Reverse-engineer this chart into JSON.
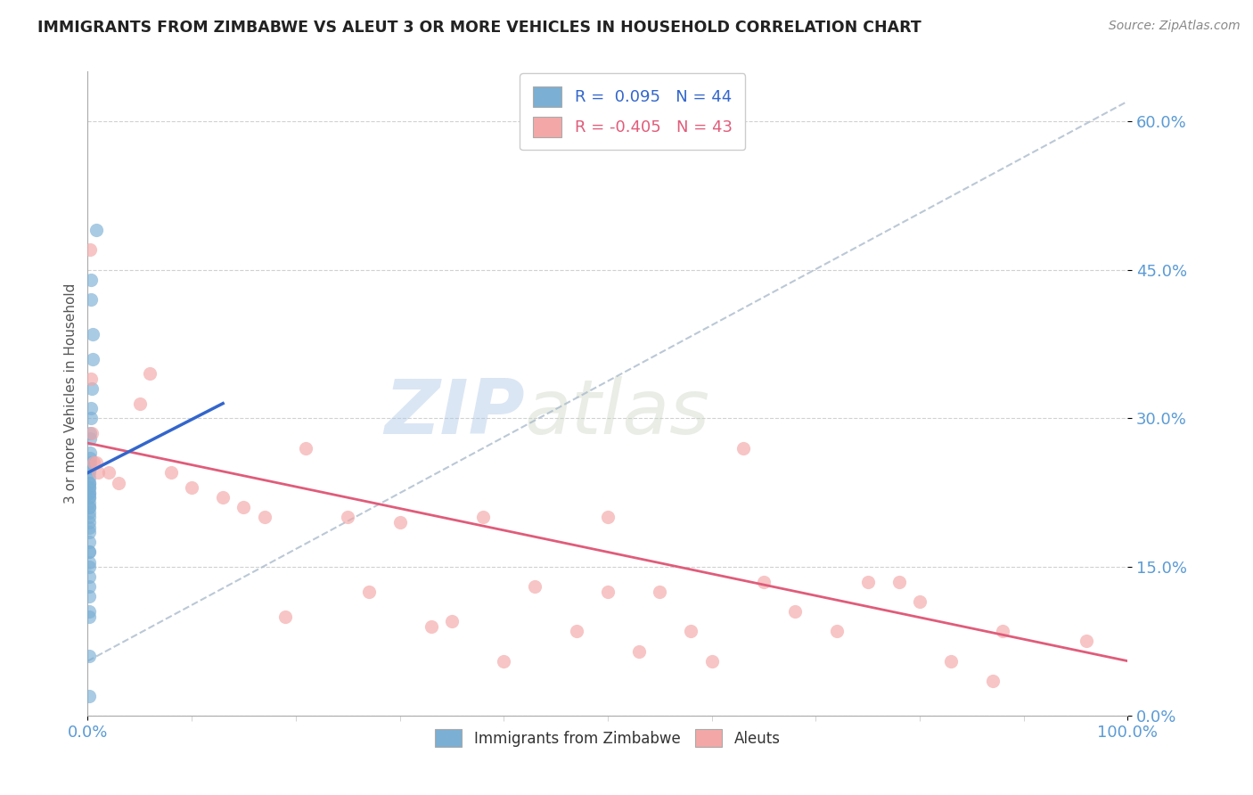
{
  "title": "IMMIGRANTS FROM ZIMBABWE VS ALEUT 3 OR MORE VEHICLES IN HOUSEHOLD CORRELATION CHART",
  "source": "Source: ZipAtlas.com",
  "ylabel": "3 or more Vehicles in Household",
  "watermark_zip": "ZIP",
  "watermark_atlas": "atlas",
  "legend_blue_r": "R =  0.095",
  "legend_blue_n": "N = 44",
  "legend_pink_r": "R = -0.405",
  "legend_pink_n": "N = 43",
  "legend_label_blue": "Immigrants from Zimbabwe",
  "legend_label_pink": "Aleuts",
  "xmin": 0.0,
  "xmax": 1.0,
  "ymin": 0.0,
  "ymax": 0.65,
  "yticks": [
    0.0,
    0.15,
    0.3,
    0.45,
    0.6
  ],
  "ytick_labels": [
    "0.0%",
    "15.0%",
    "30.0%",
    "45.0%",
    "60.0%"
  ],
  "xtick_labels": [
    "0.0%",
    "100.0%"
  ],
  "blue_color": "#7bafd4",
  "pink_color": "#f4a7a7",
  "blue_line_color": "#3366cc",
  "pink_line_color": "#e05c7a",
  "title_color": "#222222",
  "axis_color": "#5b9bd5",
  "grid_color": "#cccccc",
  "background_color": "#ffffff",
  "blue_scatter_x": [
    0.008,
    0.003,
    0.003,
    0.005,
    0.005,
    0.004,
    0.003,
    0.003,
    0.002,
    0.002,
    0.002,
    0.002,
    0.002,
    0.002,
    0.001,
    0.001,
    0.001,
    0.001,
    0.001,
    0.001,
    0.001,
    0.001,
    0.001,
    0.001,
    0.001,
    0.001,
    0.001,
    0.001,
    0.001,
    0.001,
    0.001,
    0.001,
    0.001,
    0.001,
    0.001,
    0.001,
    0.001,
    0.001,
    0.001,
    0.001,
    0.001,
    0.001,
    0.001,
    0.001
  ],
  "blue_scatter_y": [
    0.49,
    0.44,
    0.42,
    0.385,
    0.36,
    0.33,
    0.31,
    0.3,
    0.285,
    0.28,
    0.265,
    0.26,
    0.255,
    0.25,
    0.245,
    0.24,
    0.235,
    0.235,
    0.23,
    0.23,
    0.225,
    0.225,
    0.22,
    0.22,
    0.215,
    0.21,
    0.21,
    0.205,
    0.2,
    0.195,
    0.19,
    0.185,
    0.175,
    0.165,
    0.165,
    0.155,
    0.15,
    0.14,
    0.13,
    0.12,
    0.105,
    0.1,
    0.06,
    0.02
  ],
  "pink_scatter_x": [
    0.002,
    0.003,
    0.004,
    0.006,
    0.008,
    0.01,
    0.02,
    0.03,
    0.05,
    0.06,
    0.08,
    0.1,
    0.13,
    0.15,
    0.17,
    0.19,
    0.21,
    0.25,
    0.27,
    0.3,
    0.33,
    0.35,
    0.38,
    0.4,
    0.43,
    0.47,
    0.5,
    0.5,
    0.53,
    0.55,
    0.58,
    0.6,
    0.63,
    0.65,
    0.68,
    0.72,
    0.75,
    0.78,
    0.8,
    0.83,
    0.87,
    0.88,
    0.96
  ],
  "pink_scatter_y": [
    0.47,
    0.34,
    0.285,
    0.255,
    0.255,
    0.245,
    0.245,
    0.235,
    0.315,
    0.345,
    0.245,
    0.23,
    0.22,
    0.21,
    0.2,
    0.1,
    0.27,
    0.2,
    0.125,
    0.195,
    0.09,
    0.095,
    0.2,
    0.055,
    0.13,
    0.085,
    0.2,
    0.125,
    0.065,
    0.125,
    0.085,
    0.055,
    0.27,
    0.135,
    0.105,
    0.085,
    0.135,
    0.135,
    0.115,
    0.055,
    0.035,
    0.085,
    0.075
  ],
  "blue_trend_x": [
    0.0,
    0.13
  ],
  "blue_trend_y": [
    0.245,
    0.315
  ],
  "pink_trend_x": [
    0.0,
    1.0
  ],
  "pink_trend_y": [
    0.275,
    0.055
  ],
  "dash_trend_x": [
    0.0,
    1.0
  ],
  "dash_trend_y": [
    0.055,
    0.62
  ]
}
